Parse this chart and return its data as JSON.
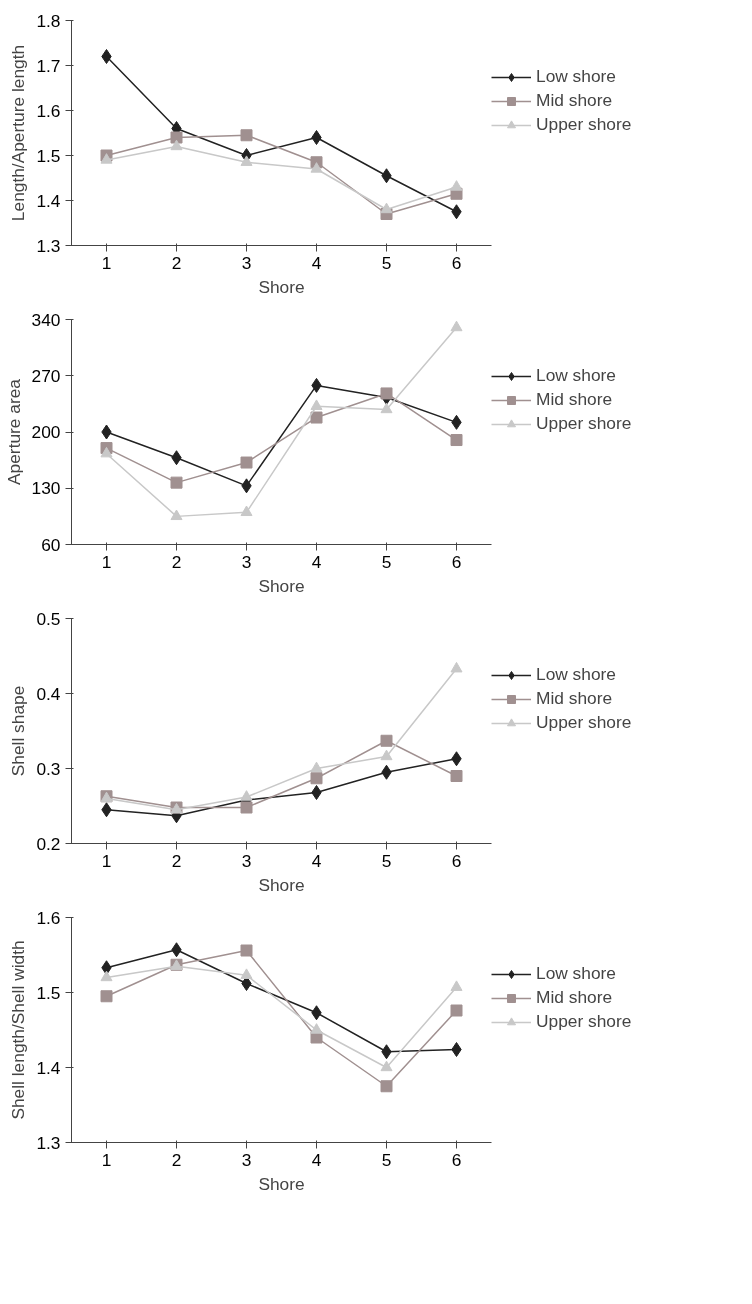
{
  "chart_data": [
    {
      "type": "line",
      "xlabel": "Shore",
      "ylabel": "Length/Aperture length",
      "categories": [
        "1",
        "2",
        "3",
        "4",
        "5",
        "6"
      ],
      "ylim": [
        1.3,
        1.8
      ],
      "yticks": [
        1.3,
        1.4,
        1.5,
        1.6,
        1.7,
        1.8
      ],
      "grid": false,
      "legend": "right",
      "series": [
        {
          "name": "Low shore",
          "color": "#222222",
          "marker": "diamond",
          "values": [
            1.72,
            1.56,
            1.5,
            1.54,
            1.455,
            1.375
          ]
        },
        {
          "name": "Mid shore",
          "color": "#a09090",
          "marker": "square",
          "values": [
            1.5,
            1.54,
            1.545,
            1.485,
            1.37,
            1.415
          ]
        },
        {
          "name": "Upper shore",
          "color": "#c8c8c8",
          "marker": "triangle",
          "values": [
            1.49,
            1.52,
            1.485,
            1.47,
            1.38,
            1.43
          ]
        }
      ]
    },
    {
      "type": "line",
      "xlabel": "Shore",
      "ylabel": "Aperture area",
      "categories": [
        "1",
        "2",
        "3",
        "4",
        "5",
        "6"
      ],
      "ylim": [
        60,
        340
      ],
      "yticks": [
        60,
        130,
        200,
        270,
        340
      ],
      "grid": false,
      "legend": "right",
      "series": [
        {
          "name": "Low shore",
          "color": "#222222",
          "marker": "diamond",
          "values": [
            200,
            168,
            133,
            258,
            243,
            212
          ]
        },
        {
          "name": "Mid shore",
          "color": "#a09090",
          "marker": "square",
          "values": [
            180,
            137,
            162,
            218,
            248,
            190
          ]
        },
        {
          "name": "Upper shore",
          "color": "#c8c8c8",
          "marker": "triangle",
          "values": [
            173,
            95,
            100,
            232,
            228,
            330
          ]
        }
      ]
    },
    {
      "type": "line",
      "xlabel": "Shore",
      "ylabel": "Shell shape",
      "categories": [
        "1",
        "2",
        "3",
        "4",
        "5",
        "6"
      ],
      "ylim": [
        0.2,
        0.5
      ],
      "yticks": [
        0.2,
        0.3,
        0.4,
        0.5
      ],
      "grid": false,
      "legend": "right",
      "series": [
        {
          "name": "Low shore",
          "color": "#222222",
          "marker": "diamond",
          "values": [
            0.245,
            0.237,
            0.258,
            0.268,
            0.295,
            0.313
          ]
        },
        {
          "name": "Mid shore",
          "color": "#a09090",
          "marker": "square",
          "values": [
            0.263,
            0.248,
            0.248,
            0.287,
            0.337,
            0.29
          ]
        },
        {
          "name": "Upper shore",
          "color": "#c8c8c8",
          "marker": "triangle",
          "values": [
            0.26,
            0.245,
            0.262,
            0.3,
            0.316,
            0.433
          ]
        }
      ]
    },
    {
      "type": "line",
      "xlabel": "Shore",
      "ylabel": "Shell length/Shell width",
      "categories": [
        "1",
        "2",
        "3",
        "4",
        "5",
        "6"
      ],
      "ylim": [
        1.3,
        1.6
      ],
      "yticks": [
        1.3,
        1.4,
        1.5,
        1.6
      ],
      "grid": false,
      "legend": "right",
      "series": [
        {
          "name": "Low shore",
          "color": "#222222",
          "marker": "diamond",
          "values": [
            1.533,
            1.557,
            1.512,
            1.473,
            1.421,
            1.424
          ]
        },
        {
          "name": "Mid shore",
          "color": "#a09090",
          "marker": "square",
          "values": [
            1.495,
            1.537,
            1.556,
            1.44,
            1.375,
            1.476
          ]
        },
        {
          "name": "Upper shore",
          "color": "#c8c8c8",
          "marker": "triangle",
          "values": [
            1.52,
            1.535,
            1.523,
            1.45,
            1.4,
            1.507
          ]
        }
      ]
    }
  ]
}
